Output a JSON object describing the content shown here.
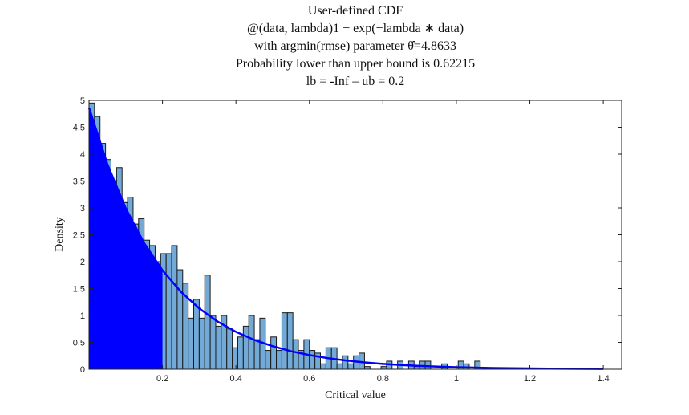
{
  "chart_data": {
    "type": "histogram",
    "title": [
      "User-defined CDF",
      "@(data, lambda)1 − exp(−lambda ∗ data)",
      "with argmin(rmse) parameter θ̂=4.8633",
      "Probability lower than upper bound is 0.62215",
      "lb =  -Inf – ub =  0.2"
    ],
    "xlabel": "Critical value",
    "ylabel": "Density",
    "bins": [
      0,
      0.015,
      0.03,
      0.045,
      0.06,
      0.075,
      0.09,
      0.105,
      0.12,
      0.135,
      0.15,
      0.165,
      0.18,
      0.195,
      0.21,
      0.225,
      0.24,
      0.255,
      0.27,
      0.285,
      0.3,
      0.315,
      0.33,
      0.345,
      0.36,
      0.375,
      0.39,
      0.405,
      0.42,
      0.435,
      0.45,
      0.465,
      0.48,
      0.495,
      0.51,
      0.525,
      0.54,
      0.555,
      0.57,
      0.585,
      0.6,
      0.615,
      0.63,
      0.645,
      0.66,
      0.675,
      0.69,
      0.705,
      0.72,
      0.735,
      0.75,
      0.765,
      0.78,
      0.795,
      0.81,
      0.825,
      0.84,
      0.855,
      0.87,
      0.885,
      0.9,
      0.915,
      0.93,
      0.945,
      0.96,
      0.975,
      0.99,
      1.005,
      1.02,
      1.035,
      1.05,
      1.065,
      1.08
    ],
    "values": [
      4.95,
      4.7,
      4.2,
      3.9,
      3.5,
      3.75,
      3.1,
      3.2,
      2.7,
      2.8,
      2.4,
      2.3,
      2.0,
      2.15,
      2.15,
      2.3,
      1.85,
      1.6,
      0.95,
      1.3,
      0.95,
      1.75,
      1.0,
      0.8,
      1.0,
      0.75,
      0.4,
      0.6,
      0.8,
      1.0,
      0.55,
      0.95,
      0.35,
      0.6,
      0.35,
      1.05,
      1.05,
      0.55,
      0.35,
      0.55,
      0.35,
      0.3,
      0.1,
      0.4,
      0.4,
      0.1,
      0.25,
      0.1,
      0.25,
      0.3,
      0.05,
      0,
      0,
      0.05,
      0.15,
      0,
      0.15,
      0,
      0.15,
      0.05,
      0.15,
      0.15,
      0,
      0,
      0.1,
      0,
      0,
      0.15,
      0.1,
      0,
      0.15,
      0
    ],
    "color": "#72a9d6",
    "edgecolor": "#1a1a1a",
    "curve": {
      "x": [
        0,
        0.05,
        0.1,
        0.15,
        0.2,
        0.25,
        0.3,
        0.35,
        0.4,
        0.45,
        0.5,
        0.55,
        0.6,
        0.65,
        0.7,
        0.75,
        0.8,
        0.85,
        0.9,
        0.95,
        1.0,
        1.05,
        1.1,
        1.15,
        1.2,
        1.25,
        1.3,
        1.35,
        1.4
      ],
      "values": [
        4.863,
        3.814,
        2.991,
        2.345,
        1.839,
        1.442,
        1.131,
        0.887,
        0.695,
        0.545,
        0.4275,
        0.335,
        0.263,
        0.206,
        0.162,
        0.127,
        0.0994,
        0.078,
        0.0611,
        0.0479,
        0.0376,
        0.0295,
        0.0231,
        0.0181,
        0.0142,
        0.0111,
        0.0087,
        0.0068,
        0.0054
      ],
      "color": "#0000ff"
    },
    "shaded_upper_bound": 0.2,
    "shade_color": "#0000ff",
    "xlim": [
      0,
      1.45
    ],
    "xticks": [
      0.2,
      0.4,
      0.6,
      0.8,
      1,
      1.2,
      1.4
    ],
    "ylim": [
      0,
      5
    ],
    "yticks": [
      0,
      0.5,
      1,
      1.5,
      2,
      2.5,
      3,
      3.5,
      4,
      4.5,
      5
    ]
  }
}
